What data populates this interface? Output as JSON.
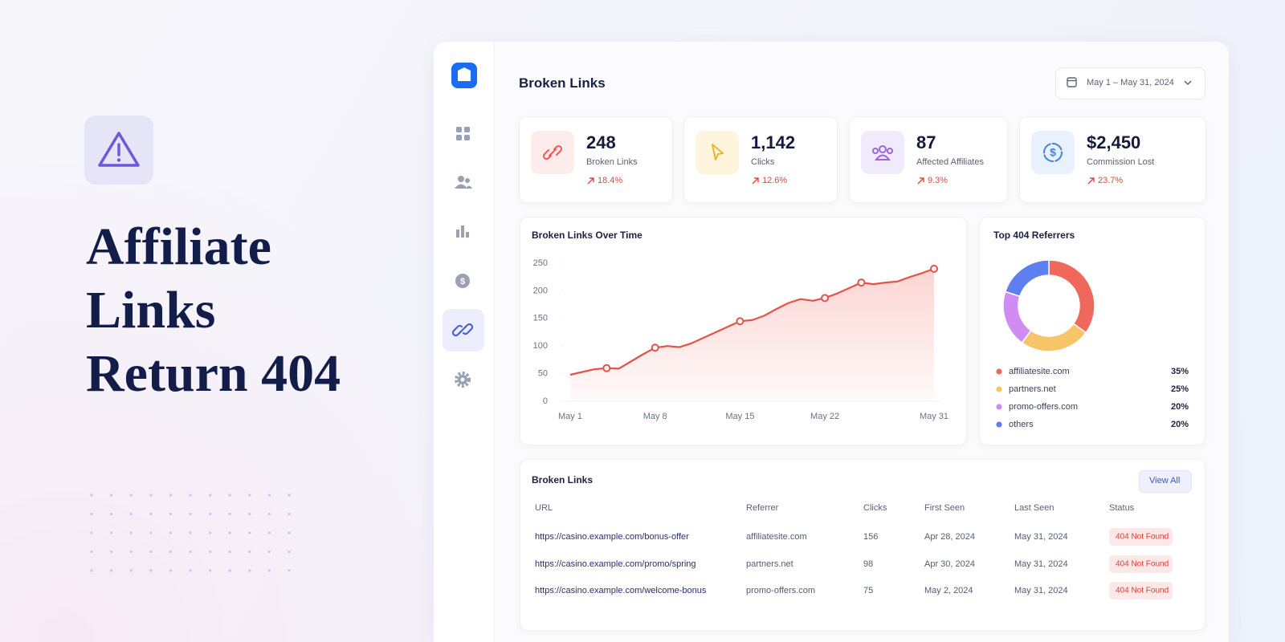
{
  "hero": {
    "headline_lines": [
      "Affiliate",
      "Links",
      "Return 404"
    ]
  },
  "dashboard": {
    "title": "Broken Links",
    "date_range": "May 1 – May 31, 2024",
    "kpis": [
      {
        "value": "248",
        "label": "Broken Links",
        "change": "18.4%"
      },
      {
        "value": "1,142",
        "label": "Clicks",
        "change": "12.6%"
      },
      {
        "value": "87",
        "label": "Affected Affiliates",
        "change": "9.3%"
      },
      {
        "value": "$2,450",
        "label": "Commission Lost",
        "change": "23.7%"
      }
    ],
    "line_chart": {
      "type": "line",
      "title": "Broken Links Over Time",
      "categories": [
        "May 1",
        null,
        null,
        null,
        null,
        null,
        null,
        "May 8",
        null,
        null,
        null,
        null,
        null,
        null,
        "May 15",
        null,
        null,
        null,
        null,
        null,
        null,
        "May 22",
        null,
        null,
        null,
        null,
        null,
        null,
        null,
        null,
        "May 31"
      ],
      "values": [
        48,
        53,
        58,
        60,
        59,
        72,
        85,
        97,
        100,
        98,
        105,
        115,
        125,
        135,
        145,
        147,
        155,
        167,
        178,
        185,
        182,
        187,
        195,
        205,
        215,
        212,
        215,
        217,
        225,
        232,
        240
      ],
      "color": "#e5524a",
      "ylim": [
        0,
        250
      ],
      "yticks": [
        0,
        50,
        100,
        150,
        200,
        250
      ]
    },
    "donut_chart": {
      "type": "donut",
      "title": "Top 404 Referrers",
      "categories": [
        "affiliatesite.com",
        "partners.net",
        "promo-offers.com",
        "others"
      ],
      "values": [
        35,
        25,
        20,
        20
      ],
      "value_labels": [
        "35%",
        "25%",
        "20%",
        "20%"
      ],
      "colors": [
        "#f0675c",
        "#f8c46a",
        "#cf8cf2",
        "#5d7ff0"
      ]
    },
    "table": {
      "title": "Broken Links",
      "action": "View All",
      "columns": [
        "URL",
        "Referrer",
        "Clicks",
        "First Seen",
        "Last Seen",
        "Status"
      ],
      "rows": [
        [
          "https://casino.example.com/bonus-offer",
          "affiliatesite.com",
          156,
          "Apr 28, 2024",
          "May 31, 2024",
          "404 Not Found"
        ],
        [
          "https://casino.example.com/promo/spring",
          "partners.net",
          98,
          "Apr 30, 2024",
          "May 31, 2024",
          "404 Not Found"
        ],
        [
          "https://casino.example.com/welcome-bonus",
          "promo-offers.com",
          75,
          "May 2, 2024",
          "May 31, 2024",
          "404 Not Found"
        ]
      ]
    }
  }
}
